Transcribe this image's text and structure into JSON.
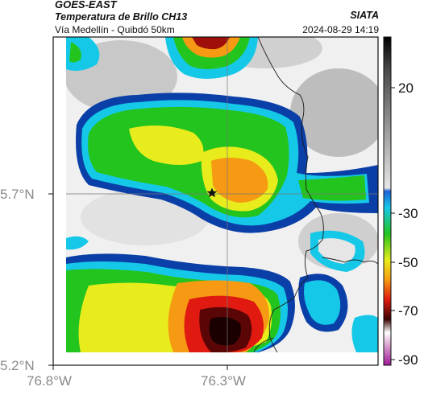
{
  "header": {
    "satellite": "GOES-EAST",
    "product": "Temperatura de Brillo CH13",
    "location": "Vía Medellín - Quibdó 50km",
    "organization": "SIATA",
    "datetime": "2024-08-29 14:19"
  },
  "map": {
    "lat_ticks": [
      "5.7°N",
      "5.2°N"
    ],
    "lon_ticks": [
      "76.8°W",
      "76.3°W"
    ],
    "marker": "star-marker"
  },
  "colorbar": {
    "ticks": [
      "20",
      "-30",
      "-50",
      "-70",
      "-90"
    ],
    "colors": {
      "warm_gray": "#f2f2f2",
      "cold_blue": "#0b3fa8",
      "cyan": "#16c8e8",
      "green": "#23c41e",
      "yellow": "#e8ec1c",
      "orange": "#f59a12",
      "red": "#e01a10",
      "dark": "#3a0404",
      "magenta": "#c63cb8"
    }
  }
}
